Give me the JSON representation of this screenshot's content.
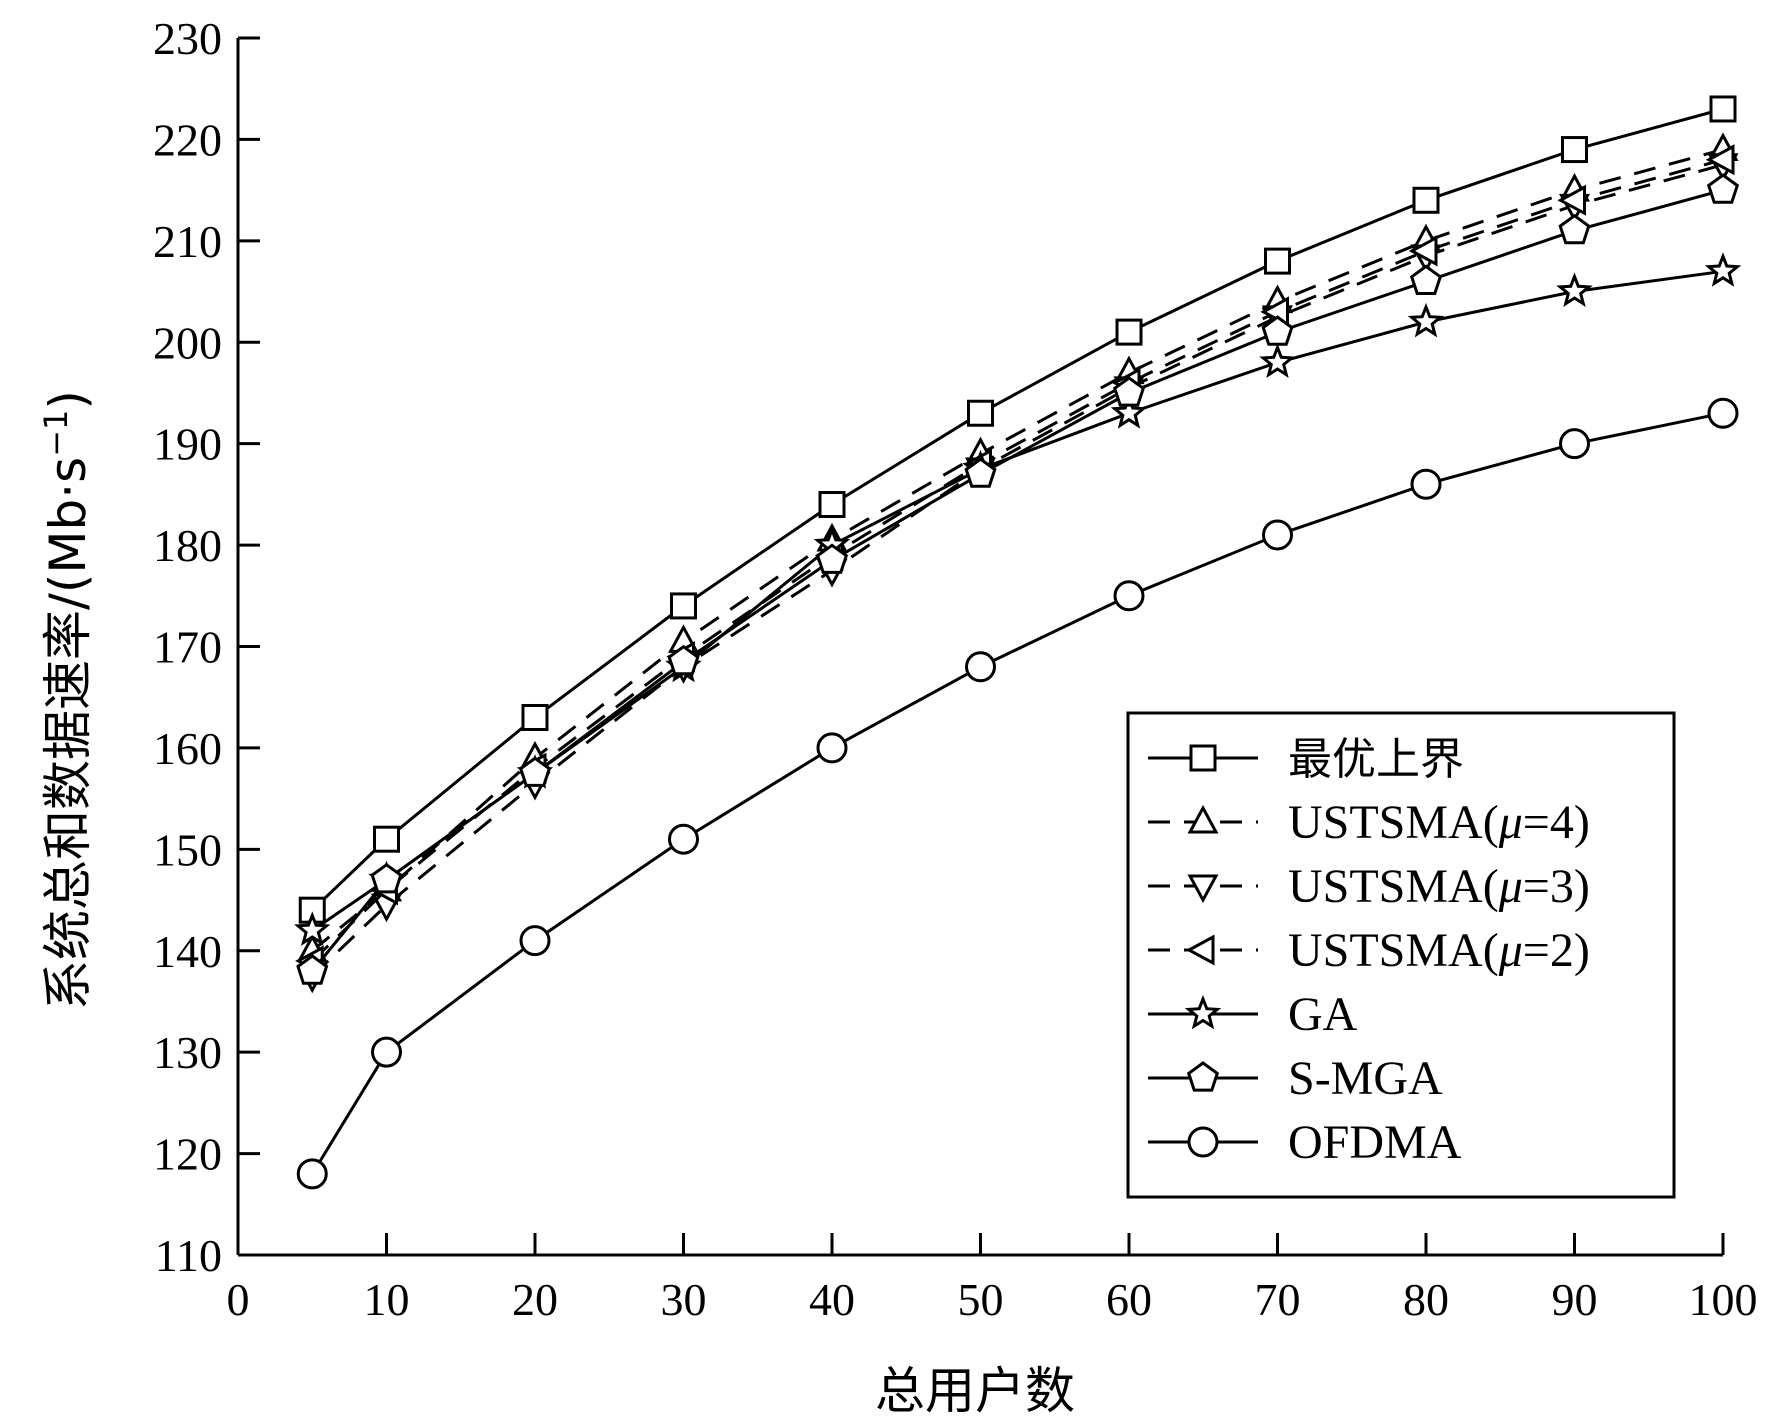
{
  "chart_data": {
    "type": "line",
    "xlabel": "总用户数",
    "ylabel_main": "系统总和数据速率/(Mb·s",
    "ylabel_sup": "−1",
    "ylabel_close": ")",
    "xlim": [
      0,
      100
    ],
    "ylim": [
      110,
      230
    ],
    "x_ticks": [
      "0",
      "10",
      "20",
      "30",
      "40",
      "50",
      "60",
      "70",
      "80",
      "90",
      "100"
    ],
    "y_ticks": [
      "110",
      "120",
      "130",
      "140",
      "150",
      "160",
      "170",
      "180",
      "190",
      "200",
      "210",
      "220",
      "230"
    ],
    "x": [
      5,
      10,
      20,
      30,
      40,
      50,
      60,
      70,
      80,
      90,
      100
    ],
    "legend_position": "bottom-right",
    "series": [
      {
        "name": "最优上界",
        "marker": "square",
        "dash": "solid",
        "values": [
          144,
          151,
          163,
          174,
          184,
          193,
          201,
          208,
          214,
          219,
          223
        ]
      },
      {
        "name": "USTSMA(μ=4)",
        "name_prefix": "USTSMA(",
        "name_mu": "μ",
        "name_suffix": "=4)",
        "marker": "triangle-up",
        "dash": "dashed",
        "values": [
          140,
          146,
          159,
          170.5,
          180.5,
          189,
          197,
          204,
          210,
          215,
          219
        ]
      },
      {
        "name": "USTSMA(μ=3)",
        "name_prefix": "USTSMA(",
        "name_mu": "μ",
        "name_suffix": "=3)",
        "marker": "triangle-down",
        "dash": "dashed",
        "values": [
          137.5,
          144.5,
          156.5,
          168,
          177.5,
          187.5,
          195.5,
          202.5,
          208.5,
          213.5,
          217.5
        ]
      },
      {
        "name": "USTSMA(μ=2)",
        "name_prefix": "USTSMA(",
        "name_mu": "μ",
        "name_suffix": "=2)",
        "marker": "triangle-left",
        "dash": "dashed",
        "values": [
          139,
          146,
          158,
          169,
          179,
          188,
          196,
          203,
          209,
          214,
          218
        ]
      },
      {
        "name": "GA",
        "marker": "star",
        "dash": "solid",
        "values": [
          142,
          147,
          157.5,
          168,
          180,
          187.5,
          193,
          198,
          202,
          205,
          207
        ]
      },
      {
        "name": "S-MGA",
        "marker": "pentagon",
        "dash": "solid",
        "values": [
          138,
          147,
          157.5,
          168.5,
          178.5,
          187,
          195,
          201,
          206,
          211,
          215
        ]
      },
      {
        "name": "OFDMA",
        "marker": "circle",
        "dash": "solid",
        "values": [
          118,
          130,
          141,
          151,
          160,
          168,
          175,
          181,
          186,
          190,
          193
        ]
      }
    ]
  }
}
